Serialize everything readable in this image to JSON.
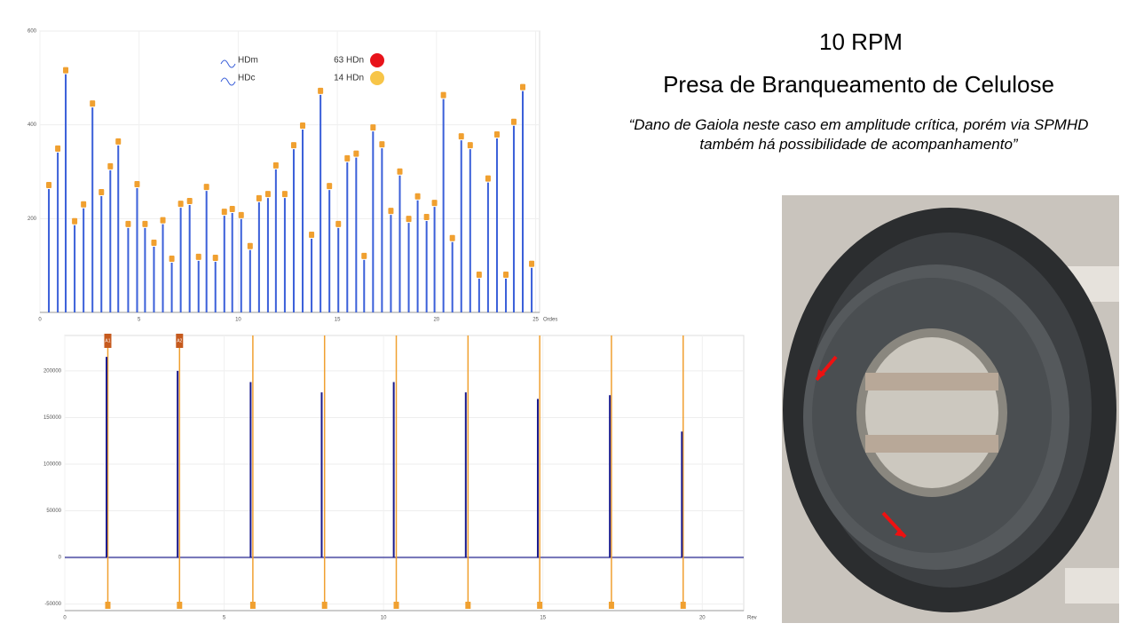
{
  "title": "10 RPM",
  "subtitle": "Presa de Branqueamento de Celulose",
  "quote": "“Dano de Gaiola neste caso em amplitude crítica, porém via SPMHD também há possibilidade de acompanhamento”",
  "chart_data": [
    {
      "type": "spectrum",
      "color": "#3a5fd9",
      "marker_color": "#f0a030",
      "x_label": "Ordes",
      "xlim": [
        0,
        25.2
      ],
      "xticks": [
        0,
        5,
        10,
        15,
        20,
        25
      ],
      "ylim": [
        0,
        600
      ],
      "yticks": [
        200,
        400,
        600
      ],
      "grid": true,
      "legend": [
        {
          "name": "HDm"
        },
        {
          "name": "HDc"
        }
      ],
      "marker_legend": [
        {
          "label": "63 HDn",
          "color": "#e8131a"
        },
        {
          "label": "14 HDn",
          "color": "#f7c548"
        }
      ],
      "x": [
        0.45,
        0.9,
        1.3,
        1.75,
        2.2,
        2.65,
        3.1,
        3.55,
        3.95,
        4.45,
        4.9,
        5.3,
        5.75,
        6.2,
        6.65,
        7.1,
        7.55,
        8.0,
        8.4,
        8.85,
        9.3,
        9.7,
        10.15,
        10.6,
        11.05,
        11.5,
        11.9,
        12.35,
        12.8,
        13.25,
        13.7,
        14.15,
        14.6,
        15.05,
        15.5,
        15.95,
        16.35,
        16.8,
        17.25,
        17.7,
        18.15,
        18.6,
        19.05,
        19.5,
        19.9,
        20.35,
        20.8,
        21.25,
        21.7,
        22.15,
        22.6,
        23.05,
        23.5,
        23.9,
        24.35,
        24.8
      ],
      "values": [
        263,
        341,
        508,
        186,
        222,
        437,
        248,
        303,
        356,
        180,
        265,
        180,
        140,
        188,
        106,
        223,
        229,
        110,
        259,
        108,
        206,
        212,
        199,
        133,
        235,
        244,
        305,
        244,
        348,
        390,
        157,
        464,
        261,
        180,
        320,
        330,
        112,
        386,
        350,
        208,
        292,
        191,
        239,
        195,
        225,
        455,
        150,
        367,
        348,
        72,
        277,
        371,
        72,
        398,
        472,
        95
      ]
    },
    {
      "type": "waveform",
      "color": "#1a1a8c",
      "cursor_color": "#f0a030",
      "x_label": "Rev",
      "xlim": [
        0,
        21.3
      ],
      "xticks": [
        0,
        5,
        10,
        15,
        20
      ],
      "ylim": [
        -57000,
        238000
      ],
      "yticks": [
        -50000,
        0,
        50000,
        100000,
        150000,
        200000
      ],
      "grid": true,
      "x": [
        1.31,
        3.54,
        5.83,
        8.06,
        10.32,
        12.58,
        14.84,
        17.1,
        19.36
      ],
      "values": [
        215000,
        200000,
        188000,
        177000,
        188000,
        177000,
        170000,
        174000,
        135000
      ],
      "cursors": [
        {
          "x": 1.35,
          "label": "A1"
        },
        {
          "x": 3.6,
          "label": "A2"
        },
        {
          "x": 5.9
        },
        {
          "x": 8.15
        },
        {
          "x": 10.4
        },
        {
          "x": 12.65
        },
        {
          "x": 14.9
        },
        {
          "x": 17.15
        },
        {
          "x": 19.4
        }
      ]
    }
  ]
}
